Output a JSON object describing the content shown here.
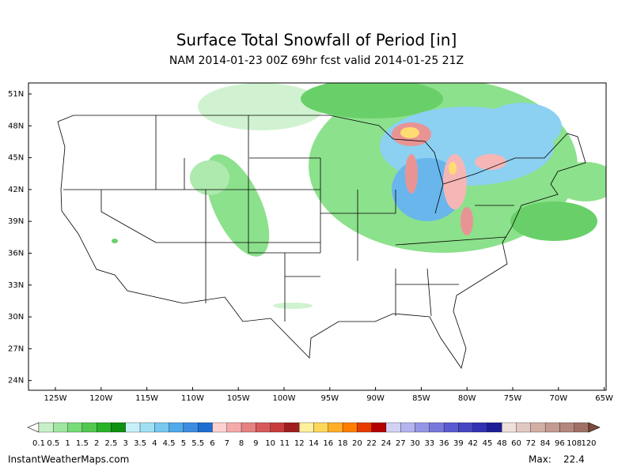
{
  "title": "Surface Total Snowfall of Period [in]",
  "subtitle": "NAM 2014-01-23 00Z 69hr fcst valid 2014-01-25 21Z",
  "map": {
    "lat_labels": [
      "51N",
      "48N",
      "45N",
      "42N",
      "39N",
      "36N",
      "33N",
      "30N",
      "27N",
      "24N"
    ],
    "lon_labels": [
      "125W",
      "120W",
      "115W",
      "110W",
      "105W",
      "100W",
      "95W",
      "90W",
      "85W",
      "80W",
      "75W",
      "70W",
      "65W"
    ]
  },
  "colorbar": {
    "labels": [
      0.1,
      0.5,
      1,
      1.5,
      2,
      2.5,
      3,
      3.5,
      4,
      4.5,
      5,
      5.5,
      6,
      7,
      8,
      9,
      10,
      11,
      12,
      14,
      16,
      18,
      20,
      22,
      24,
      27,
      30,
      33,
      36,
      39,
      42,
      45,
      48,
      60,
      72,
      84,
      96,
      108,
      120
    ],
    "colors": [
      "#c8f0c8",
      "#a0e6a0",
      "#78dc78",
      "#50c850",
      "#28b428",
      "#109010",
      "#c8f0fa",
      "#a0e0f5",
      "#78c8f0",
      "#50aaeb",
      "#3c8ce1",
      "#1e6ed2",
      "#ffd2d2",
      "#f5aaaa",
      "#e68282",
      "#d75a5a",
      "#c83c3c",
      "#a01e1e",
      "#fff0a0",
      "#ffd75a",
      "#ffaf28",
      "#ff7d00",
      "#e63c00",
      "#b40000",
      "#d2d2f5",
      "#b4b4f0",
      "#9696e6",
      "#7878dc",
      "#5a5ad2",
      "#4646c3",
      "#3232b4",
      "#1e1e96",
      "#f0e0dc",
      "#e1c8c3",
      "#d2afa5",
      "#c39b91",
      "#b4877d",
      "#a07064"
    ],
    "under_color": "#ffffff",
    "over_color": "#7d4b3c"
  },
  "footer": {
    "source": "InstantWeatherMaps.com",
    "max_label": "Max:",
    "max_value": 22.4
  }
}
